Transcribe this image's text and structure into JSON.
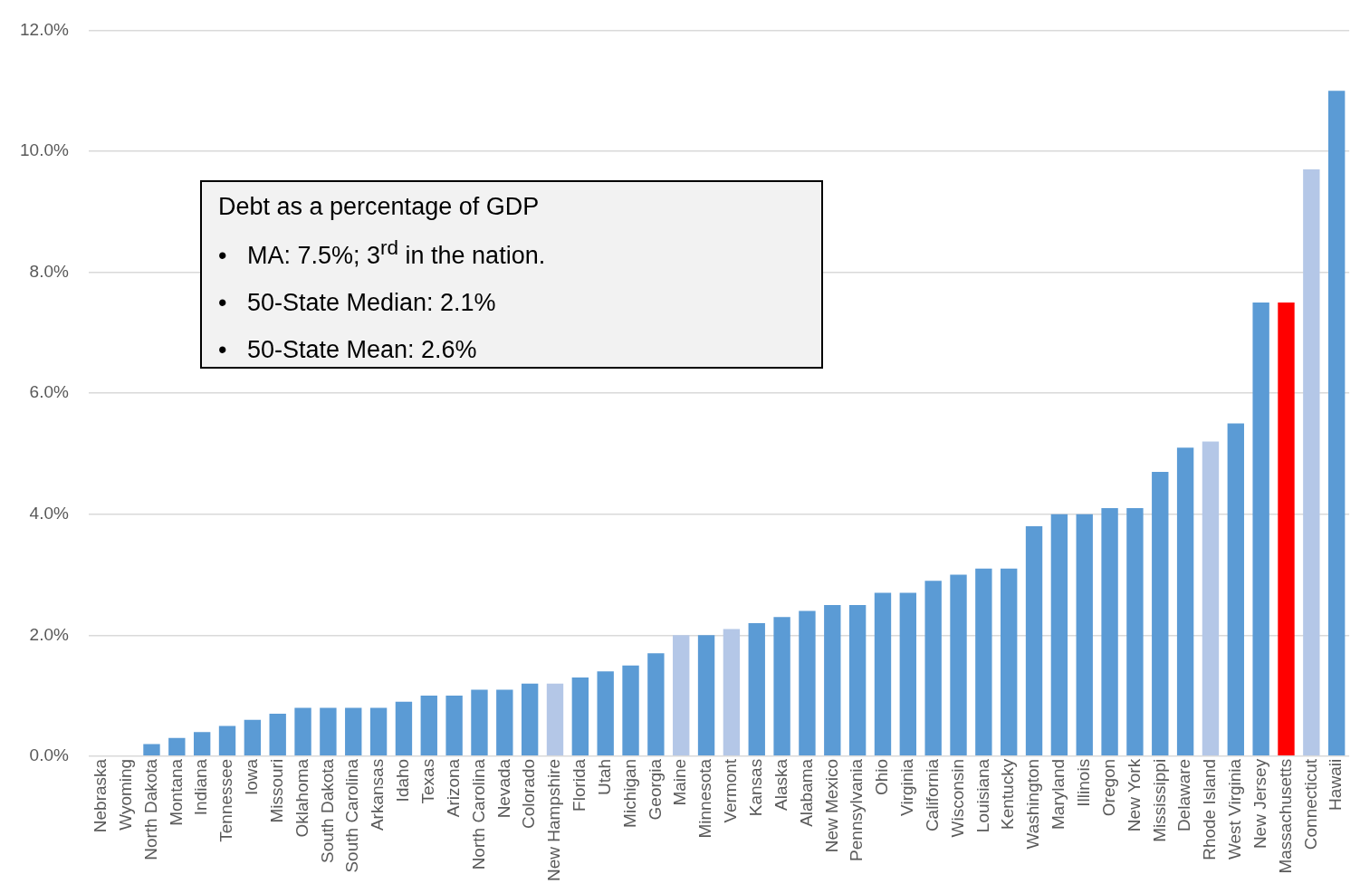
{
  "chart_data": {
    "type": "bar",
    "categories": [
      "Nebraska",
      "Wyoming",
      "North Dakota",
      "Montana",
      "Indiana",
      "Tennessee",
      "Iowa",
      "Missouri",
      "Oklahoma",
      "South Dakota",
      "South Carolina",
      "Arkansas",
      "Idaho",
      "Texas",
      "Arizona",
      "North Carolina",
      "Nevada",
      "Colorado",
      "New Hampshire",
      "Florida",
      "Utah",
      "Michigan",
      "Georgia",
      "Maine",
      "Minnesota",
      "Vermont",
      "Kansas",
      "Alaska",
      "Alabama",
      "New Mexico",
      "Pennsylvania",
      "Ohio",
      "Virginia",
      "California",
      "Wisconsin",
      "Louisiana",
      "Kentucky",
      "Washington",
      "Maryland",
      "Illinois",
      "Oregon",
      "New York",
      "Mississippi",
      "Delaware",
      "Rhode Island",
      "West Virginia",
      "New Jersey",
      "Massachusetts",
      "Connecticut",
      "Hawaii"
    ],
    "values": [
      0,
      0,
      0.2,
      0.3,
      0.4,
      0.5,
      0.6,
      0.7,
      0.8,
      0.8,
      0.8,
      0.8,
      0.9,
      1.0,
      1.0,
      1.1,
      1.1,
      1.2,
      1.2,
      1.3,
      1.4,
      1.5,
      1.7,
      2.0,
      2.0,
      2.1,
      2.2,
      2.3,
      2.4,
      2.5,
      2.5,
      2.7,
      2.7,
      2.9,
      3.0,
      3.1,
      3.1,
      3.8,
      4.0,
      4.0,
      4.1,
      4.1,
      4.7,
      5.1,
      5.2,
      5.5,
      7.5,
      7.5,
      9.7,
      11.0
    ],
    "colors": [
      "#5b9bd5",
      "#5b9bd5",
      "#5b9bd5",
      "#5b9bd5",
      "#5b9bd5",
      "#5b9bd5",
      "#5b9bd5",
      "#5b9bd5",
      "#5b9bd5",
      "#5b9bd5",
      "#5b9bd5",
      "#5b9bd5",
      "#5b9bd5",
      "#5b9bd5",
      "#5b9bd5",
      "#5b9bd5",
      "#5b9bd5",
      "#5b9bd5",
      "#b4c7e7",
      "#5b9bd5",
      "#5b9bd5",
      "#5b9bd5",
      "#5b9bd5",
      "#b4c7e7",
      "#5b9bd5",
      "#b4c7e7",
      "#5b9bd5",
      "#5b9bd5",
      "#5b9bd5",
      "#5b9bd5",
      "#5b9bd5",
      "#5b9bd5",
      "#5b9bd5",
      "#5b9bd5",
      "#5b9bd5",
      "#5b9bd5",
      "#5b9bd5",
      "#5b9bd5",
      "#5b9bd5",
      "#5b9bd5",
      "#5b9bd5",
      "#5b9bd5",
      "#5b9bd5",
      "#5b9bd5",
      "#b4c7e7",
      "#5b9bd5",
      "#5b9bd5",
      "#ff0000",
      "#b4c7e7",
      "#5b9bd5"
    ],
    "ylim": [
      0,
      12
    ],
    "yticks": [
      {
        "value": 0,
        "label": "0.0%"
      },
      {
        "value": 2,
        "label": "2.0%"
      },
      {
        "value": 4,
        "label": "4.0%"
      },
      {
        "value": 6,
        "label": "6.0%"
      },
      {
        "value": 8,
        "label": "8.0%"
      },
      {
        "value": 10,
        "label": "10.0%"
      },
      {
        "value": 12,
        "label": "12.0%"
      }
    ],
    "grid": "y",
    "legend": false,
    "annotations": [
      "Debt as a percentage of GDP",
      "•   MA: 7.5%; 3$^{rd}$ in the nation.",
      "•   50-State Median: 2.1%",
      "•   50-State Mean: 2.6%"
    ]
  }
}
